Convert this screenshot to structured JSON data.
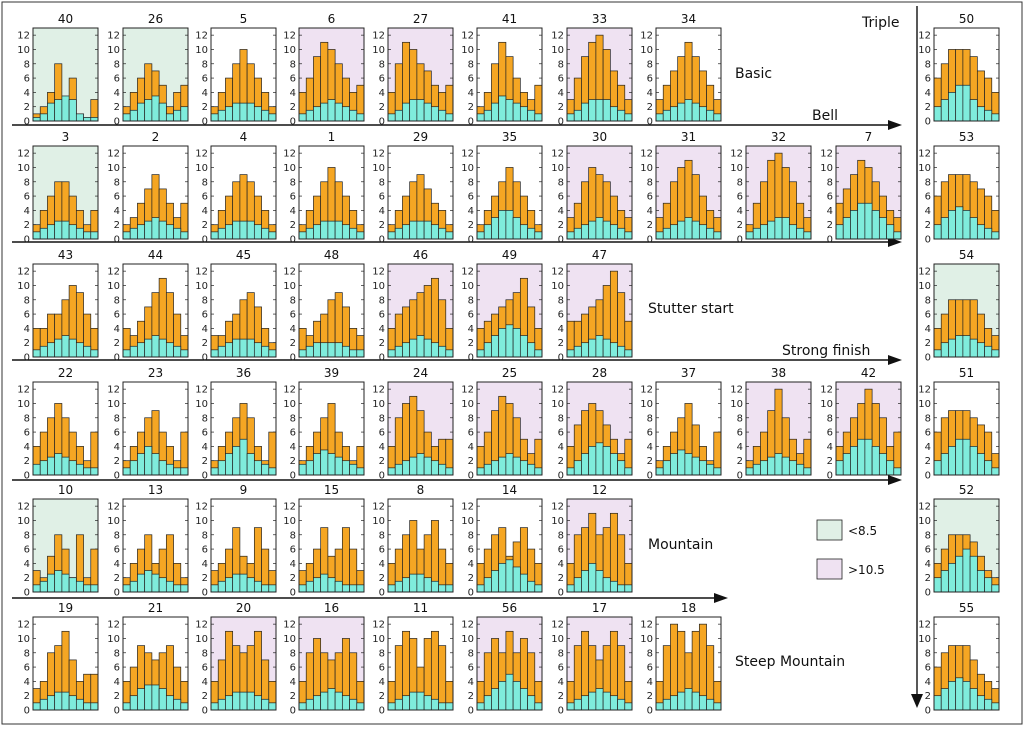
{
  "colors": {
    "upper": "#f5a623",
    "lower": "#7fecdc",
    "green_bg": "#e0f0e6",
    "purple_bg": "#efe2f2",
    "plain_bg": "#ffffff",
    "stroke": "#222222"
  },
  "legend": [
    {
      "label": "<8.5",
      "color": "#e0f0e6"
    },
    {
      "label": ">10.5",
      "color": "#efe2f2"
    }
  ],
  "axis": {
    "ticks": [
      "0",
      "2",
      "4",
      "6",
      "8",
      "10",
      "12"
    ],
    "ylim": [
      0,
      13
    ]
  },
  "row_labels": [
    "Basic",
    "Stutter start",
    "Mountain",
    "Steep Mountain"
  ],
  "arrow_labels": {
    "bell": "Bell",
    "strong_finish": "Strong finish",
    "triple": "Triple"
  },
  "chart_data": [
    {
      "id": "40",
      "type": "bar",
      "bg": "green",
      "top": [
        1,
        2,
        4,
        8,
        3,
        6,
        1,
        0.5,
        3
      ],
      "bottom": [
        0.5,
        1,
        2.5,
        3,
        3.5,
        3,
        1,
        0.5,
        0.5
      ]
    },
    {
      "id": "26",
      "type": "bar",
      "bg": "green",
      "top": [
        2,
        4,
        6,
        8,
        7,
        5,
        2,
        4,
        5
      ],
      "bottom": [
        1,
        1.5,
        2.5,
        3,
        3.5,
        2.5,
        1,
        1.5,
        2
      ]
    },
    {
      "id": "5",
      "type": "bar",
      "bg": "white",
      "top": [
        2,
        4,
        6,
        8,
        10,
        8,
        6,
        4,
        2
      ],
      "bottom": [
        1,
        1.5,
        2,
        2.5,
        2.5,
        2.5,
        2,
        1.5,
        1
      ]
    },
    {
      "id": "6",
      "type": "bar",
      "bg": "purple",
      "top": [
        4,
        6,
        9,
        11,
        10,
        8,
        6,
        4,
        5
      ],
      "bottom": [
        1,
        1.5,
        2,
        2.5,
        3,
        2.5,
        2,
        1.5,
        1
      ]
    },
    {
      "id": "27",
      "type": "bar",
      "bg": "purple",
      "top": [
        4,
        8,
        11,
        10,
        8,
        7,
        5,
        4,
        5
      ],
      "bottom": [
        1,
        1.5,
        2.5,
        3,
        3,
        2.5,
        2,
        1.5,
        1
      ]
    },
    {
      "id": "41",
      "type": "bar",
      "bg": "white",
      "top": [
        2,
        4,
        8,
        11,
        9,
        6,
        4,
        3,
        5
      ],
      "bottom": [
        1,
        1.5,
        2.5,
        3.5,
        3,
        2.5,
        2,
        1.5,
        1
      ]
    },
    {
      "id": "33",
      "type": "bar",
      "bg": "purple",
      "top": [
        3,
        6,
        9,
        11,
        12,
        10,
        7,
        5,
        3
      ],
      "bottom": [
        1,
        1.5,
        2.5,
        3,
        3,
        3,
        2,
        1.5,
        1
      ]
    },
    {
      "id": "34",
      "type": "bar",
      "bg": "white",
      "top": [
        3,
        5,
        7,
        9,
        11,
        9,
        7,
        5,
        3
      ],
      "bottom": [
        1,
        1.5,
        2,
        2.5,
        3,
        2.5,
        2,
        1.5,
        1
      ]
    },
    {
      "id": "50",
      "type": "bar",
      "bg": "white",
      "top": [
        6,
        8,
        10,
        10,
        10,
        9,
        7,
        6,
        4
      ],
      "bottom": [
        2,
        3,
        4,
        5,
        5,
        3,
        2,
        1.5,
        1
      ]
    },
    {
      "id": "3",
      "type": "bar",
      "bg": "green",
      "top": [
        2,
        4,
        6,
        8,
        8,
        6,
        4,
        2,
        4
      ],
      "bottom": [
        1,
        1.5,
        2,
        2.5,
        2.5,
        2,
        1.5,
        1,
        1
      ]
    },
    {
      "id": "2",
      "type": "bar",
      "bg": "white",
      "top": [
        2,
        3,
        5,
        7,
        9,
        7,
        5,
        3,
        5
      ],
      "bottom": [
        1,
        1.5,
        2,
        2.5,
        3,
        2.5,
        2,
        1.5,
        1
      ]
    },
    {
      "id": "4",
      "type": "bar",
      "bg": "white",
      "top": [
        2,
        4,
        6,
        8,
        9,
        8,
        6,
        4,
        2
      ],
      "bottom": [
        1,
        1.5,
        2,
        2.5,
        2.5,
        2.5,
        2,
        1.5,
        1
      ]
    },
    {
      "id": "1",
      "type": "bar",
      "bg": "white",
      "top": [
        2,
        4,
        6,
        8,
        10,
        8,
        6,
        4,
        2
      ],
      "bottom": [
        1,
        1.5,
        2,
        2.5,
        2.5,
        2.5,
        2,
        1.5,
        1
      ]
    },
    {
      "id": "29",
      "type": "bar",
      "bg": "white",
      "top": [
        2,
        4,
        6,
        8,
        9,
        7,
        5,
        4,
        2
      ],
      "bottom": [
        1,
        1.5,
        2,
        2.5,
        2.5,
        2.5,
        2,
        1.5,
        1
      ]
    },
    {
      "id": "35",
      "type": "bar",
      "bg": "white",
      "top": [
        2,
        4,
        6,
        8,
        10,
        8,
        6,
        4,
        2
      ],
      "bottom": [
        1,
        2,
        3,
        4,
        4,
        3,
        2,
        1.5,
        1
      ]
    },
    {
      "id": "30",
      "type": "bar",
      "bg": "purple",
      "top": [
        3,
        5,
        8,
        10,
        9,
        8,
        6,
        4,
        3
      ],
      "bottom": [
        1,
        1.5,
        2,
        2.5,
        3,
        2.5,
        2,
        1.5,
        1
      ]
    },
    {
      "id": "31",
      "type": "bar",
      "bg": "purple",
      "top": [
        3,
        5,
        8,
        10,
        11,
        9,
        6,
        4,
        3
      ],
      "bottom": [
        1,
        1.5,
        2,
        2.5,
        3,
        2.5,
        2,
        1.5,
        1
      ]
    },
    {
      "id": "32",
      "type": "bar",
      "bg": "purple",
      "top": [
        2,
        5,
        8,
        11,
        12,
        10,
        8,
        5,
        3
      ],
      "bottom": [
        1,
        1.5,
        2,
        2.5,
        3,
        3,
        2,
        1.5,
        1
      ]
    },
    {
      "id": "7",
      "type": "bar",
      "bg": "purple",
      "top": [
        5,
        7,
        9,
        11,
        10,
        8,
        6,
        4,
        3
      ],
      "bottom": [
        2,
        3,
        4,
        5,
        5,
        4,
        3,
        2,
        1
      ]
    },
    {
      "id": "53",
      "type": "bar",
      "bg": "white",
      "top": [
        6,
        8,
        9,
        9,
        9,
        8,
        7,
        6,
        4
      ],
      "bottom": [
        2,
        3,
        4,
        4.5,
        4,
        3,
        2,
        1.5,
        1
      ]
    },
    {
      "id": "43",
      "type": "bar",
      "bg": "white",
      "top": [
        4,
        4,
        6,
        6,
        8,
        10,
        9,
        6,
        4
      ],
      "bottom": [
        1,
        1.5,
        2,
        2.5,
        3,
        2.5,
        2,
        1.5,
        1
      ]
    },
    {
      "id": "44",
      "type": "bar",
      "bg": "white",
      "top": [
        4,
        3,
        5,
        7,
        9,
        11,
        9,
        6,
        3
      ],
      "bottom": [
        1,
        1.5,
        2,
        2.5,
        3,
        2.5,
        2,
        1.5,
        1
      ]
    },
    {
      "id": "45",
      "type": "bar",
      "bg": "white",
      "top": [
        3,
        3,
        5,
        6,
        8,
        9,
        7,
        4,
        2
      ],
      "bottom": [
        1,
        1.5,
        2,
        2.5,
        2.5,
        2.5,
        2,
        1.5,
        1
      ]
    },
    {
      "id": "48",
      "type": "bar",
      "bg": "white",
      "top": [
        4,
        3,
        5,
        6,
        8,
        9,
        7,
        4,
        3
      ],
      "bottom": [
        1,
        1.5,
        2,
        2,
        2,
        2,
        1.5,
        1,
        1
      ]
    },
    {
      "id": "46",
      "type": "bar",
      "bg": "purple",
      "top": [
        4,
        6,
        7,
        8,
        9,
        10,
        11,
        8,
        4
      ],
      "bottom": [
        1,
        1.5,
        2,
        2.5,
        3,
        2.5,
        2,
        1.5,
        1
      ]
    },
    {
      "id": "49",
      "type": "bar",
      "bg": "purple",
      "top": [
        4,
        5,
        6,
        7,
        8,
        9,
        11,
        7,
        4
      ],
      "bottom": [
        1,
        2,
        3,
        4,
        4.5,
        4,
        3,
        2,
        1
      ]
    },
    {
      "id": "47",
      "type": "bar",
      "bg": "purple",
      "top": [
        5,
        5,
        6,
        7,
        8,
        10,
        12,
        9,
        5
      ],
      "bottom": [
        1,
        1.5,
        2,
        2.5,
        3,
        2.5,
        2,
        1.5,
        1
      ]
    },
    {
      "id": "54",
      "type": "bar",
      "bg": "green",
      "top": [
        4,
        6,
        8,
        8,
        8,
        8,
        6,
        4,
        3
      ],
      "bottom": [
        1,
        2,
        2.5,
        3,
        3,
        2.5,
        2,
        1.5,
        1
      ]
    },
    {
      "id": "22",
      "type": "bar",
      "bg": "white",
      "top": [
        4,
        6,
        8,
        10,
        8,
        6,
        4,
        2,
        6
      ],
      "bottom": [
        1.5,
        2,
        2.5,
        3,
        2.5,
        2,
        1.5,
        1,
        1
      ]
    },
    {
      "id": "23",
      "type": "bar",
      "bg": "white",
      "top": [
        2,
        4,
        6,
        8,
        9,
        6,
        4,
        2,
        6
      ],
      "bottom": [
        1,
        2,
        3,
        4,
        3,
        2,
        1.5,
        1,
        1
      ]
    },
    {
      "id": "36",
      "type": "bar",
      "bg": "white",
      "top": [
        2,
        4,
        6,
        8,
        10,
        8,
        4,
        2,
        6
      ],
      "bottom": [
        1,
        2,
        3,
        4,
        5,
        3,
        2,
        1.5,
        1
      ]
    },
    {
      "id": "39",
      "type": "bar",
      "bg": "white",
      "top": [
        2,
        4,
        6,
        8,
        10,
        6,
        4,
        2,
        4
      ],
      "bottom": [
        1.5,
        2,
        3,
        3.5,
        3,
        2.5,
        2,
        1.5,
        1
      ]
    },
    {
      "id": "24",
      "type": "bar",
      "bg": "purple",
      "top": [
        4,
        8,
        10,
        11,
        9,
        6,
        4,
        5,
        5
      ],
      "bottom": [
        1,
        1.5,
        2,
        2.5,
        3,
        2.5,
        2,
        1.5,
        1
      ]
    },
    {
      "id": "25",
      "type": "bar",
      "bg": "purple",
      "top": [
        4,
        6,
        9,
        11,
        10,
        8,
        5,
        3,
        5
      ],
      "bottom": [
        1,
        1.5,
        2,
        2.5,
        3,
        2.5,
        2,
        1.5,
        1
      ]
    },
    {
      "id": "28",
      "type": "bar",
      "bg": "purple",
      "top": [
        4,
        7,
        9,
        10,
        9,
        7,
        5,
        3,
        5
      ],
      "bottom": [
        1,
        2,
        3,
        4,
        4.5,
        4,
        3,
        2,
        1
      ]
    },
    {
      "id": "37",
      "type": "bar",
      "bg": "white",
      "top": [
        2,
        4,
        6,
        8,
        10,
        7,
        4,
        2,
        6
      ],
      "bottom": [
        1,
        2,
        3,
        3.5,
        3,
        2.5,
        2,
        1.5,
        1
      ]
    },
    {
      "id": "38",
      "type": "bar",
      "bg": "purple",
      "top": [
        2,
        4,
        6,
        9,
        12,
        8,
        5,
        3,
        5
      ],
      "bottom": [
        1,
        1.5,
        2,
        2.5,
        3,
        2.5,
        2,
        1.5,
        1
      ]
    },
    {
      "id": "42",
      "type": "bar",
      "bg": "purple",
      "top": [
        4,
        6,
        8,
        10,
        12,
        10,
        8,
        4,
        6
      ],
      "bottom": [
        2,
        3,
        4,
        5,
        5,
        4,
        3,
        2,
        1
      ]
    },
    {
      "id": "51",
      "type": "bar",
      "bg": "white",
      "top": [
        6,
        8,
        9,
        9,
        9,
        8,
        7,
        6,
        3
      ],
      "bottom": [
        2,
        3,
        4,
        5,
        5,
        4,
        3,
        2,
        1
      ]
    },
    {
      "id": "10",
      "type": "bar",
      "bg": "green",
      "top": [
        3,
        2,
        5,
        8,
        6,
        2,
        8,
        2,
        6
      ],
      "bottom": [
        1,
        1.5,
        2.5,
        3,
        2.5,
        2,
        1.5,
        1,
        1
      ]
    },
    {
      "id": "13",
      "type": "bar",
      "bg": "white",
      "top": [
        2,
        4,
        6,
        8,
        4,
        6,
        8,
        4,
        2
      ],
      "bottom": [
        1,
        1.5,
        2.5,
        3,
        2.5,
        2,
        1.5,
        1,
        1
      ]
    },
    {
      "id": "9",
      "type": "bar",
      "bg": "white",
      "top": [
        3,
        4,
        6,
        9,
        5,
        4,
        9,
        6,
        3
      ],
      "bottom": [
        1,
        1.5,
        2,
        2.5,
        2.5,
        2,
        1.5,
        1,
        1
      ]
    },
    {
      "id": "15",
      "type": "bar",
      "bg": "white",
      "top": [
        3,
        4,
        6,
        9,
        5,
        6,
        9,
        6,
        3
      ],
      "bottom": [
        1,
        1.5,
        2,
        2.5,
        2,
        1.5,
        1,
        1,
        1
      ]
    },
    {
      "id": "8",
      "type": "bar",
      "bg": "white",
      "top": [
        4,
        6,
        8,
        10,
        6,
        8,
        10,
        6,
        4
      ],
      "bottom": [
        1,
        1.5,
        2,
        2.5,
        2.5,
        2,
        1.5,
        1,
        1
      ]
    },
    {
      "id": "14",
      "type": "bar",
      "bg": "white",
      "top": [
        4,
        6,
        8,
        9,
        5,
        7,
        9,
        6,
        4
      ],
      "bottom": [
        1,
        2,
        3,
        4,
        4.5,
        3.5,
        2.5,
        1.5,
        1
      ]
    },
    {
      "id": "12",
      "type": "bar",
      "bg": "purple",
      "top": [
        4,
        8,
        9,
        11,
        8,
        9,
        11,
        8,
        4
      ],
      "bottom": [
        1,
        2,
        3,
        4,
        3,
        2,
        1.5,
        1,
        1
      ]
    },
    {
      "id": "52",
      "type": "bar",
      "bg": "green",
      "top": [
        4,
        6,
        8,
        8,
        8,
        7,
        5,
        3,
        2
      ],
      "bottom": [
        2,
        3,
        4,
        5,
        6,
        5,
        3,
        2,
        1
      ]
    },
    {
      "id": "19",
      "type": "bar",
      "bg": "white",
      "top": [
        3,
        4,
        8,
        9,
        11,
        7,
        4,
        5,
        5
      ],
      "bottom": [
        1,
        1.5,
        2,
        2.5,
        2.5,
        2,
        1.5,
        1,
        1
      ]
    },
    {
      "id": "21",
      "type": "bar",
      "bg": "white",
      "top": [
        4,
        6,
        9,
        8,
        7,
        8,
        9,
        6,
        4
      ],
      "bottom": [
        1,
        2,
        3,
        3.5,
        3.5,
        3,
        2,
        1.5,
        1
      ]
    },
    {
      "id": "20",
      "type": "bar",
      "bg": "purple",
      "top": [
        4,
        7,
        11,
        9,
        8,
        9,
        11,
        7,
        4
      ],
      "bottom": [
        1,
        1.5,
        2,
        2.5,
        2.5,
        2.5,
        2,
        1.5,
        1
      ]
    },
    {
      "id": "16",
      "type": "bar",
      "bg": "purple",
      "top": [
        4,
        8,
        10,
        8,
        7,
        8,
        10,
        8,
        4
      ],
      "bottom": [
        1,
        1.5,
        2,
        2.5,
        3,
        2.5,
        2,
        1.5,
        1
      ]
    },
    {
      "id": "11",
      "type": "bar",
      "bg": "white",
      "top": [
        4,
        9,
        11,
        10,
        6,
        10,
        11,
        9,
        4
      ],
      "bottom": [
        1,
        1.5,
        2,
        2.5,
        2.5,
        2,
        1.5,
        1,
        1
      ]
    },
    {
      "id": "56",
      "type": "bar",
      "bg": "purple",
      "top": [
        4,
        8,
        10,
        8,
        11,
        8,
        10,
        8,
        4
      ],
      "bottom": [
        1,
        2,
        3,
        4,
        5,
        4,
        3,
        2,
        1
      ]
    },
    {
      "id": "17",
      "type": "bar",
      "bg": "purple",
      "top": [
        4,
        9,
        11,
        9,
        7,
        9,
        11,
        9,
        4
      ],
      "bottom": [
        1,
        1.5,
        2,
        2.5,
        3,
        2.5,
        2,
        1.5,
        1
      ]
    },
    {
      "id": "18",
      "type": "bar",
      "bg": "white",
      "top": [
        4,
        9,
        12,
        11,
        8,
        11,
        12,
        9,
        4
      ],
      "bottom": [
        1,
        1.5,
        2,
        2.5,
        3,
        2.5,
        2,
        1.5,
        1
      ]
    },
    {
      "id": "55",
      "type": "bar",
      "bg": "white",
      "top": [
        6,
        8,
        9,
        9,
        9,
        7,
        5,
        4,
        3
      ],
      "bottom": [
        2,
        3,
        4,
        4.5,
        4,
        3,
        2,
        1.5,
        1
      ]
    }
  ]
}
